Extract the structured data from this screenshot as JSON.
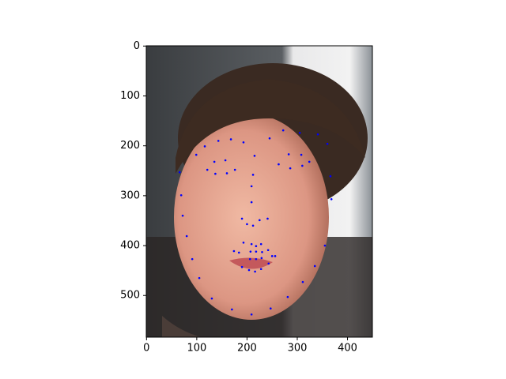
{
  "chart_data": {
    "type": "scatter",
    "color": "#0000ff",
    "xlim": [
      -0.5,
      449.5
    ],
    "ylim": [
      583.5,
      -0.5
    ],
    "xticks": [
      0,
      100,
      200,
      300,
      400
    ],
    "yticks": [
      0,
      100,
      200,
      300,
      400,
      500
    ],
    "x": [
      66,
      69,
      72,
      80,
      91,
      105,
      130,
      170,
      209,
      247,
      281,
      311,
      335,
      355,
      368,
      366,
      360,
      99,
      116,
      143,
      168,
      193,
      245,
      272,
      305,
      341,
      215,
      212,
      209,
      209,
      190,
      200,
      212,
      225,
      241,
      121,
      135,
      157,
      176,
      160,
      137,
      263,
      283,
      308,
      324,
      310,
      286,
      174,
      193,
      209,
      218,
      228,
      242,
      256,
      243,
      228,
      216,
      204,
      190,
      184,
      207,
      218,
      230,
      250,
      229,
      218,
      206
    ],
    "y": [
      253,
      299,
      340,
      381,
      427,
      465,
      506,
      528,
      538,
      526,
      503,
      473,
      441,
      400,
      307,
      261,
      196,
      218,
      201,
      190,
      187,
      193,
      185,
      169,
      174,
      177,
      220,
      258,
      281,
      313,
      346,
      357,
      360,
      349,
      346,
      248,
      232,
      229,
      248,
      255,
      256,
      237,
      217,
      218,
      232,
      240,
      245,
      411,
      394,
      397,
      401,
      397,
      409,
      421,
      436,
      447,
      452,
      449,
      443,
      414,
      412,
      412,
      413,
      421,
      425,
      427,
      427
    ]
  }
}
